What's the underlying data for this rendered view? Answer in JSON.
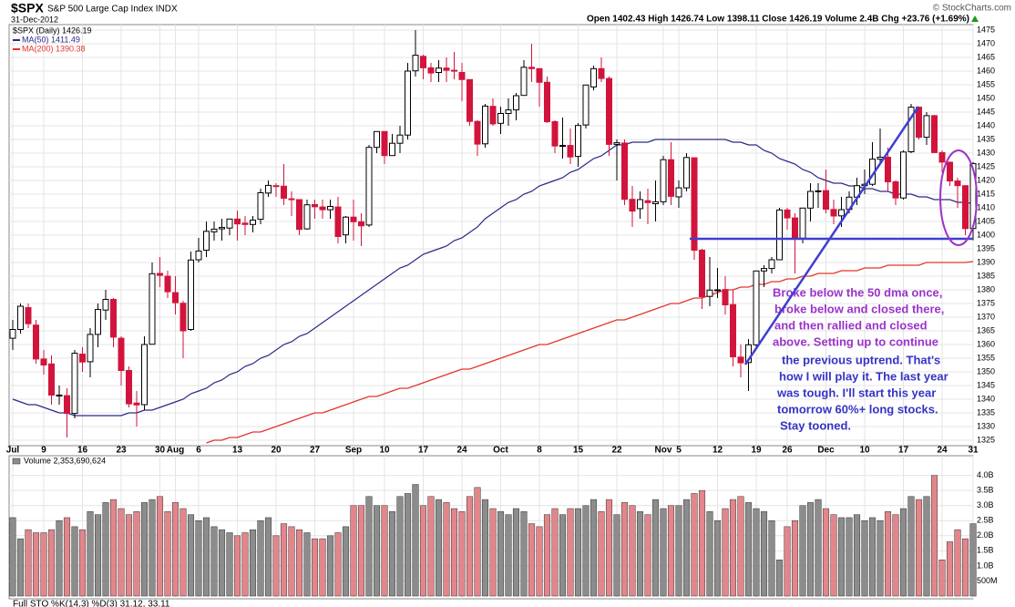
{
  "chart_data": [
    {
      "type": "candlestick",
      "symbol": "$SPX",
      "title": "S&P 500 Large Cap Index INDX",
      "date": "31-Dec-2012",
      "quote": "Open 1402.43 High 1426.74 Low 1398.11 Close 1426.19 Volume 2.4B Chg +23.76 (+1.69%)",
      "credit": "© StockCharts.com",
      "legend": [
        "$SPX (Daily) 1426.19"
      ],
      "up_color": "#000000",
      "down_color": "#d2143c",
      "ylim": [
        1323,
        1477
      ],
      "yticks": [
        1325,
        1330,
        1335,
        1340,
        1345,
        1350,
        1355,
        1360,
        1365,
        1370,
        1375,
        1380,
        1385,
        1390,
        1395,
        1400,
        1405,
        1410,
        1415,
        1420,
        1425,
        1430,
        1435,
        1440,
        1445,
        1450,
        1455,
        1460,
        1465,
        1470,
        1475
      ],
      "grid": true,
      "categories": [
        "Jul",
        null,
        null,
        null,
        "9",
        null,
        null,
        null,
        null,
        "16",
        null,
        null,
        null,
        null,
        "23",
        null,
        null,
        null,
        null,
        "30",
        null,
        "Aug",
        null,
        null,
        "6",
        null,
        null,
        null,
        null,
        "13",
        null,
        null,
        null,
        null,
        "20",
        null,
        null,
        null,
        null,
        "27",
        null,
        null,
        null,
        null,
        "Sep",
        null,
        null,
        null,
        "10",
        null,
        null,
        null,
        null,
        "17",
        null,
        null,
        null,
        null,
        "24",
        null,
        null,
        null,
        null,
        "Oct",
        null,
        null,
        null,
        null,
        "8",
        null,
        null,
        null,
        null,
        "15",
        null,
        null,
        null,
        null,
        "22",
        null,
        null,
        null,
        null,
        null,
        "Nov",
        null,
        "5",
        null,
        null,
        null,
        null,
        "12",
        null,
        null,
        null,
        null,
        "19",
        null,
        null,
        null,
        "26",
        null,
        null,
        null,
        null,
        "Dec",
        null,
        null,
        null,
        null,
        "10",
        null,
        null,
        null,
        null,
        "17",
        null,
        null,
        null,
        null,
        "24",
        null,
        null,
        null,
        "31"
      ],
      "open": [
        1362.3,
        1365.5,
        1373.5,
        1367.1,
        1354.7,
        1352.9,
        1341.4,
        1341.3,
        1334.8,
        1356.5,
        1353.7,
        1363.7,
        1372.6,
        1376.5,
        1362.3,
        1350.5,
        1338.6,
        1338.0,
        1360.1,
        1386.0,
        1385.0,
        1379.0,
        1375.1,
        1365.5,
        1391.0,
        1394.5,
        1401.2,
        1402.3,
        1402.6,
        1405.9,
        1404.4,
        1403.9,
        1405.8,
        1415.4,
        1418.1,
        1417.9,
        1413.3,
        1413.0,
        1402.3,
        1411.2,
        1410.3,
        1409.3,
        1410.3,
        1400.1,
        1406.6,
        1404.9,
        1403.7,
        1432.1,
        1437.9,
        1429.1,
        1433.6,
        1436.6,
        1460.1,
        1465.4,
        1461.2,
        1459.5,
        1461.1,
        1460.3,
        1459.5,
        1456.9,
        1441.6,
        1433.4,
        1447.1,
        1440.9,
        1444.5,
        1445.8,
        1451.1,
        1461.4,
        1460.9,
        1455.9,
        1441.5,
        1432.8,
        1432.8,
        1428.8,
        1440.3,
        1454.2,
        1460.9,
        1457.3,
        1433.2,
        1433.7,
        1413.1,
        1409.7,
        1412.6,
        1411.5,
        1412.2,
        1427.6,
        1414.0,
        1417.3,
        1428.3,
        1394.5,
        1377.6,
        1379.9,
        1380.1,
        1374.6,
        1355.4,
        1353.4,
        1359.9,
        1386.9,
        1387.8,
        1391.0,
        1409.2,
        1406.3,
        1398.9,
        1409.9,
        1415.95,
        1416.3,
        1409.4,
        1407.05,
        1409.4,
        1413.9,
        1418.1,
        1418.6,
        1427.8,
        1428.5,
        1419.5,
        1413.6,
        1430.5,
        1446.8,
        1435.8,
        1443.7,
        1430.2,
        1426.7,
        1419.8,
        1418.1,
        1402.43
      ],
      "high": [
        1369,
        1375,
        1375,
        1369,
        1358,
        1356,
        1345,
        1344,
        1358,
        1359,
        1366,
        1375,
        1380,
        1377,
        1363,
        1352,
        1343,
        1363,
        1390,
        1392,
        1387,
        1385,
        1376,
        1394,
        1399,
        1405,
        1405,
        1406,
        1406,
        1409,
        1407,
        1407,
        1417,
        1420,
        1419,
        1426,
        1416,
        1413,
        1413,
        1413,
        1413,
        1413,
        1414,
        1407,
        1413,
        1408,
        1433,
        1438,
        1438,
        1437,
        1440,
        1463,
        1475,
        1466,
        1463,
        1464,
        1465,
        1467,
        1463,
        1457,
        1442,
        1448,
        1450,
        1447,
        1450,
        1452,
        1464,
        1470,
        1461,
        1458,
        1442,
        1443,
        1439,
        1441,
        1455,
        1462,
        1465,
        1458,
        1435,
        1435,
        1418,
        1416,
        1417,
        1420,
        1429,
        1434,
        1420,
        1430,
        1428,
        1395,
        1392,
        1388,
        1385,
        1380,
        1360,
        1362,
        1387,
        1389,
        1392,
        1410,
        1410,
        1408,
        1410,
        1419,
        1419,
        1424,
        1413,
        1414,
        1416,
        1421,
        1424,
        1434,
        1439,
        1432,
        1420,
        1431,
        1448,
        1447,
        1445,
        1444,
        1431,
        1426,
        1421,
        1418,
        1426.74
      ],
      "low": [
        1358,
        1364,
        1366,
        1353,
        1349,
        1338,
        1338,
        1326,
        1333,
        1350,
        1348,
        1359,
        1369,
        1359,
        1345,
        1337,
        1330,
        1336,
        1360,
        1381,
        1377,
        1371,
        1355,
        1365,
        1390,
        1392,
        1398,
        1398,
        1400,
        1398,
        1400,
        1401,
        1404,
        1414,
        1414,
        1411,
        1407,
        1400,
        1402,
        1406,
        1406,
        1406,
        1397,
        1397,
        1398,
        1396,
        1403,
        1430,
        1426,
        1429,
        1430,
        1435,
        1458,
        1457,
        1456,
        1456,
        1456,
        1457,
        1449,
        1440,
        1429,
        1432,
        1440,
        1437,
        1440,
        1442,
        1451,
        1456,
        1447,
        1441,
        1430,
        1428,
        1426,
        1425,
        1439,
        1453,
        1456,
        1429,
        1420,
        1411,
        1403,
        1406,
        1404,
        1405,
        1411,
        1411,
        1410,
        1416,
        1391,
        1373,
        1374,
        1377,
        1371,
        1352,
        1348,
        1343,
        1359,
        1381,
        1386,
        1391,
        1402,
        1386,
        1397,
        1405,
        1410,
        1408,
        1404,
        1403,
        1408,
        1411,
        1415,
        1418,
        1426,
        1416,
        1411,
        1413,
        1430,
        1435,
        1433,
        1430,
        1423,
        1418,
        1410,
        1400,
        1398.11
      ],
      "close": [
        1365.5,
        1374.0,
        1367.6,
        1354.7,
        1352.5,
        1341.5,
        1341.5,
        1334.8,
        1356.8,
        1353.6,
        1363.7,
        1372.8,
        1376.5,
        1362.7,
        1350.5,
        1338.3,
        1337.9,
        1360.0,
        1385.9,
        1385.3,
        1379.3,
        1375.3,
        1365.0,
        1390.9,
        1394.2,
        1401.4,
        1402.2,
        1402.8,
        1405.9,
        1404.1,
        1403.9,
        1405.5,
        1415.5,
        1418.2,
        1418.1,
        1413.5,
        1413.1,
        1402.1,
        1411.1,
        1410.4,
        1409.3,
        1410.5,
        1399.5,
        1406.6,
        1404.9,
        1403.4,
        1432.1,
        1437.9,
        1429.1,
        1433.6,
        1436.6,
        1460.0,
        1465.8,
        1461.2,
        1459.3,
        1461.1,
        1460.3,
        1460.2,
        1456.9,
        1441.6,
        1433.3,
        1447.2,
        1440.7,
        1444.5,
        1445.8,
        1451.0,
        1461.4,
        1460.9,
        1455.9,
        1441.5,
        1432.6,
        1432.8,
        1428.6,
        1440.1,
        1454.9,
        1460.9,
        1457.3,
        1433.2,
        1433.8,
        1413.1,
        1408.8,
        1413.0,
        1411.9,
        1412.2,
        1427.6,
        1414.2,
        1417.3,
        1428.4,
        1394.5,
        1377.5,
        1379.9,
        1380.0,
        1374.5,
        1355.5,
        1353.3,
        1359.9,
        1386.9,
        1387.8,
        1391.0,
        1409.2,
        1406.3,
        1398.9,
        1409.9,
        1416.0,
        1416.2,
        1409.5,
        1407.0,
        1409.3,
        1413.9,
        1418.1,
        1418.6,
        1427.8,
        1428.5,
        1419.5,
        1413.6,
        1430.4,
        1446.8,
        1435.8,
        1443.7,
        1430.2,
        1426.7,
        1419.8,
        1418.1,
        1402.4,
        1426.19
      ],
      "series": [
        {
          "name": "MA(50) 1411.49",
          "color": "#2a2a88",
          "values": [
            1340,
            1339,
            1338,
            1338,
            1337,
            1336,
            1335,
            1335,
            1334,
            1334,
            1334,
            1334,
            1334,
            1334,
            1334,
            1335,
            1335,
            1336,
            1336,
            1337,
            1338,
            1339,
            1340,
            1342,
            1343,
            1344,
            1346,
            1347,
            1349,
            1350,
            1352,
            1353,
            1355,
            1356,
            1358,
            1360,
            1361,
            1363,
            1364,
            1366,
            1368,
            1370,
            1372,
            1374,
            1376,
            1378,
            1380,
            1382,
            1384,
            1386,
            1388,
            1389,
            1391,
            1393,
            1394,
            1395,
            1396,
            1398,
            1399,
            1401,
            1403,
            1406,
            1408,
            1410,
            1412,
            1413,
            1415,
            1416,
            1418,
            1419,
            1420,
            1421,
            1423,
            1424,
            1426,
            1428,
            1429,
            1431,
            1433,
            1433,
            1434,
            1434,
            1434,
            1435,
            1435,
            1435,
            1435,
            1435,
            1435,
            1435,
            1435,
            1435,
            1435,
            1434,
            1434,
            1433,
            1433,
            1431,
            1430,
            1428,
            1427,
            1426,
            1424,
            1423,
            1421,
            1420,
            1419,
            1419,
            1418,
            1418,
            1417,
            1417,
            1416,
            1416,
            1415,
            1415,
            1415,
            1414,
            1414,
            1413,
            1413,
            1413,
            1412,
            1412,
            1411.49
          ]
        },
        {
          "name": "MA(200) 1390.38",
          "color": "#e3342a",
          "values": [
            null,
            null,
            null,
            null,
            null,
            null,
            null,
            null,
            null,
            null,
            null,
            null,
            null,
            null,
            null,
            null,
            null,
            null,
            null,
            null,
            null,
            null,
            null,
            null,
            null,
            1324,
            1325,
            1325,
            1326,
            1326,
            1327,
            1328,
            1328,
            1329,
            1330,
            1331,
            1332,
            1333,
            1334,
            1335,
            1335,
            1336,
            1337,
            1338,
            1339,
            1340,
            1341,
            1341,
            1342,
            1343,
            1344,
            1344,
            1345,
            1346,
            1347,
            1348,
            1349,
            1350,
            1351,
            1351,
            1352,
            1353,
            1354,
            1355,
            1356,
            1357,
            1358,
            1359,
            1360,
            1360,
            1361,
            1362,
            1363,
            1364,
            1365,
            1366,
            1367,
            1368,
            1369,
            1369,
            1370,
            1371,
            1372,
            1373,
            1374,
            1375,
            1375,
            1376,
            1377,
            1377,
            1378,
            1379,
            1380,
            1380,
            1381,
            1381,
            1382,
            1382,
            1383,
            1383,
            1384,
            1384,
            1385,
            1385,
            1386,
            1386,
            1386,
            1387,
            1387,
            1387,
            1388,
            1388,
            1388,
            1389,
            1389,
            1389,
            1389,
            1389,
            1390,
            1390,
            1390,
            1390,
            1390,
            1390,
            1390.38
          ]
        }
      ],
      "annotations": [
        {
          "color": "#9b34c9",
          "lines": [
            "Broke below the 50 dma once,",
            "broke below and closed there,",
            "and then rallied and closed",
            "above. Setting up to continue"
          ]
        },
        {
          "color": "#3434c4",
          "lines": [
            "the previous uptrend.  That's",
            "how I will play it.  The last year",
            "was tough.  I'll start this year",
            "tomorrow 60%+ long stocks.",
            "Stay tooned."
          ]
        }
      ]
    },
    {
      "type": "bar",
      "title": "Volume 2,353,690,624",
      "up_color": "#8c8c8c",
      "down_color": "#e2868b",
      "ylim": [
        0,
        4.26
      ],
      "yticks": [
        {
          "value": 4,
          "label": "4.0B"
        },
        {
          "value": 3.5,
          "label": "3.5B"
        },
        {
          "value": 3,
          "label": "3.0B"
        },
        {
          "value": 2.5,
          "label": "2.5B"
        },
        {
          "value": 2,
          "label": "2.0B"
        },
        {
          "value": 1.5,
          "label": "1.5B"
        },
        {
          "value": 1,
          "label": "1.0B"
        },
        {
          "value": 0.5,
          "label": "500M"
        }
      ],
      "values": [
        2.6,
        1.9,
        2.2,
        2.1,
        2.1,
        2.2,
        2.5,
        2.6,
        2.3,
        2.2,
        2.8,
        2.7,
        3.1,
        3.2,
        2.9,
        2.7,
        2.8,
        3.1,
        3.2,
        3.3,
        2.8,
        3.1,
        2.9,
        2.7,
        2.5,
        2.6,
        2.3,
        2.2,
        2.1,
        2.0,
        2.1,
        2.2,
        2.5,
        2.6,
        2.0,
        2.4,
        2.3,
        2.2,
        2.1,
        1.9,
        1.9,
        2.0,
        2.1,
        2.3,
        3.0,
        3.0,
        3.3,
        3.0,
        3.0,
        2.8,
        3.3,
        3.4,
        3.7,
        3.0,
        3.3,
        3.2,
        3.1,
        2.9,
        2.8,
        3.3,
        3.6,
        3.2,
        2.9,
        2.8,
        2.7,
        2.9,
        2.8,
        2.4,
        2.3,
        2.7,
        2.9,
        2.7,
        2.9,
        2.9,
        3.0,
        3.2,
        2.8,
        3.2,
        2.7,
        3.1,
        3.0,
        2.8,
        2.7,
        3.2,
        2.9,
        3.0,
        3.0,
        3.2,
        3.4,
        3.5,
        2.8,
        2.5,
        2.9,
        3.2,
        3.3,
        3.1,
        2.9,
        2.8,
        2.5,
        1.2,
        2.3,
        2.5,
        3.0,
        3.1,
        3.2,
        2.9,
        2.7,
        2.6,
        2.6,
        2.7,
        2.5,
        2.6,
        2.5,
        2.8,
        2.7,
        2.9,
        3.3,
        3.2,
        3.3,
        4.0,
        1.2,
        1.8,
        2.2,
        1.9,
        2.4
      ]
    }
  ],
  "footer": "Full STO %K(14,3) %D(3) 31.12, 33.11"
}
